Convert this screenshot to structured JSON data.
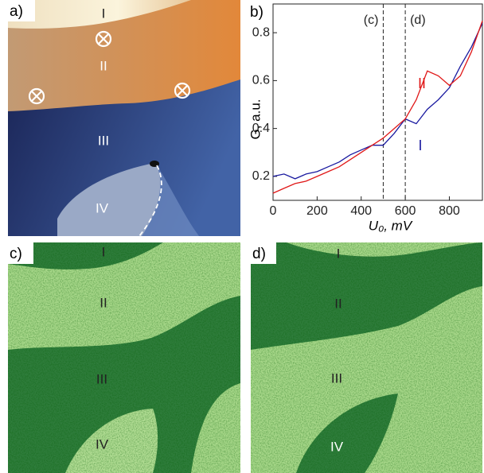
{
  "panels": {
    "a": {
      "label": "a)",
      "regions": [
        "I",
        "II",
        "III",
        "IV"
      ]
    },
    "b": {
      "label": "b)"
    },
    "c": {
      "label": "c)",
      "regions": [
        "I",
        "II",
        "III",
        "IV"
      ]
    },
    "d": {
      "label": "d)",
      "regions": [
        "I",
        "II",
        "III",
        "IV"
      ]
    }
  },
  "chart_data": {
    "type": "line",
    "x_label": "U₀, mV",
    "y_label": "G, a.u.",
    "x": [
      0,
      50,
      100,
      150,
      200,
      250,
      300,
      350,
      400,
      450,
      500,
      550,
      600,
      650,
      700,
      750,
      800,
      850,
      900,
      950
    ],
    "series": [
      {
        "name": "I",
        "color": "#1a1aa0",
        "values": [
          0.2,
          0.21,
          0.19,
          0.21,
          0.22,
          0.24,
          0.26,
          0.29,
          0.31,
          0.33,
          0.33,
          0.38,
          0.44,
          0.42,
          0.48,
          0.52,
          0.57,
          0.66,
          0.74,
          0.84
        ]
      },
      {
        "name": "II",
        "color": "#e01818",
        "values": [
          0.13,
          0.15,
          0.17,
          0.18,
          0.2,
          0.22,
          0.24,
          0.27,
          0.3,
          0.33,
          0.36,
          0.4,
          0.44,
          0.52,
          0.64,
          0.62,
          0.58,
          0.62,
          0.72,
          0.85
        ]
      }
    ],
    "vlines": [
      {
        "x": 500,
        "label": "(c)"
      },
      {
        "x": 600,
        "label": "(d)"
      }
    ],
    "xlim": [
      0,
      950
    ],
    "ylim": [
      0.1,
      0.92
    ],
    "xticks": [
      0,
      200,
      400,
      600,
      800
    ],
    "yticks": [
      0.2,
      0.4,
      0.6,
      0.8
    ]
  }
}
